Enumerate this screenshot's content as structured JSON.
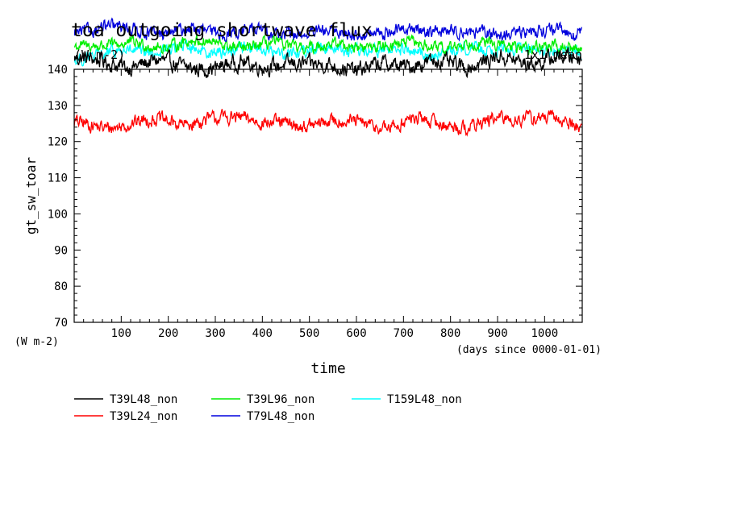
{
  "chart_data": {
    "type": "line",
    "title": "toa outgoing shortwave flux",
    "title_units": "(W m-2)",
    "top_right_label": "1x1 mean",
    "ylabel": "gt_sw_toar",
    "yunits": "(W m-2)",
    "xlabel": "time",
    "xunits": "(days since 0000-01-01)",
    "xlim": [
      0,
      1080
    ],
    "ylim": [
      70,
      140
    ],
    "xticks": [
      100,
      200,
      300,
      400,
      500,
      600,
      700,
      800,
      900,
      1000
    ],
    "yticks": [
      70,
      80,
      90,
      100,
      110,
      120,
      130,
      140
    ],
    "series": [
      {
        "name": "T39L48_non",
        "color": "#000000",
        "mean": 142.0,
        "amp": 1.6,
        "x": [
          0,
          60,
          120,
          180,
          240,
          300,
          360,
          420,
          480,
          540,
          600,
          660,
          720,
          780,
          840,
          900,
          960,
          1020,
          1080
        ],
        "values": [
          143,
          142,
          141,
          142,
          141,
          140,
          142,
          141,
          141,
          142,
          139,
          142,
          141,
          142,
          141,
          143,
          142,
          143,
          143
        ]
      },
      {
        "name": "T39L24_non",
        "color": "#ff0000",
        "mean": 125.0,
        "amp": 1.4,
        "x": [
          0,
          60,
          120,
          180,
          240,
          300,
          360,
          420,
          480,
          540,
          600,
          660,
          720,
          780,
          840,
          900,
          960,
          1020,
          1080
        ],
        "values": [
          125,
          124,
          125,
          126,
          125,
          126,
          127,
          125,
          124,
          126,
          125,
          124,
          126,
          125,
          124,
          126,
          127,
          126,
          124
        ]
      },
      {
        "name": "T39L96_non",
        "color": "#00ee00",
        "mean": 146.5,
        "amp": 1.2,
        "x": [
          0,
          60,
          120,
          180,
          240,
          300,
          360,
          420,
          480,
          540,
          600,
          660,
          720,
          780,
          840,
          900,
          960,
          1020,
          1080
        ],
        "values": [
          146,
          147,
          147,
          146,
          148,
          147,
          146,
          147,
          146,
          147,
          146,
          147,
          147,
          146,
          147,
          147,
          146,
          146,
          146
        ]
      },
      {
        "name": "T79L48_non",
        "color": "#0000dd",
        "mean": 150.0,
        "amp": 1.3,
        "x": [
          0,
          60,
          120,
          180,
          240,
          300,
          360,
          420,
          480,
          540,
          600,
          660,
          720,
          780,
          840,
          900,
          960,
          1020,
          1080
        ],
        "values": [
          150,
          152,
          151,
          150,
          151,
          150,
          151,
          150,
          150,
          150,
          150,
          150,
          151,
          151,
          150,
          150,
          150,
          151,
          150
        ]
      },
      {
        "name": "T159L48_non",
        "color": "#00ffff",
        "mean": 145.0,
        "amp": 1.3,
        "x": [
          0,
          60,
          120,
          180,
          240,
          300,
          360,
          420,
          480,
          540,
          600,
          660,
          720,
          780,
          840,
          900,
          960,
          1020,
          1080
        ],
        "values": [
          143,
          144,
          145,
          145,
          146,
          145,
          146,
          145,
          145,
          146,
          145,
          145,
          145,
          144,
          146,
          146,
          145,
          145,
          145
        ]
      }
    ],
    "legend": {
      "position": "bottom-left",
      "columns": 3
    },
    "grid": false
  }
}
